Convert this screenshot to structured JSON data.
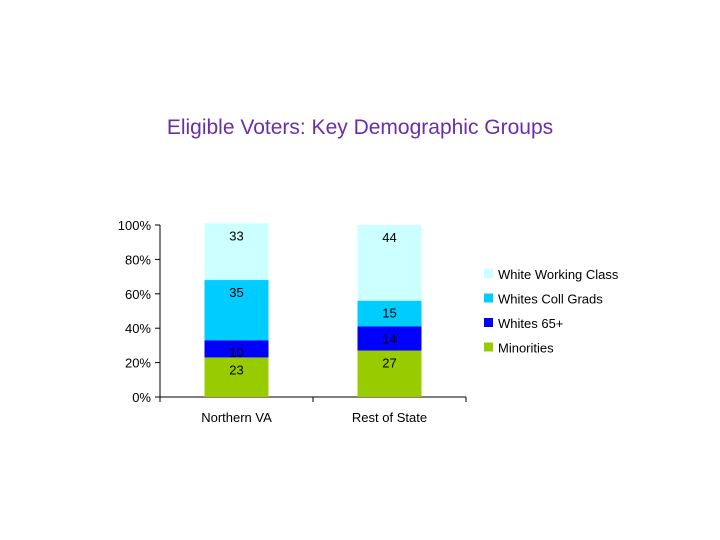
{
  "chart_data": {
    "type": "bar",
    "stacked": true,
    "title": "Eligible Voters: Key Demographic Groups",
    "categories": [
      "Northern VA",
      "Rest of State"
    ],
    "series": [
      {
        "name": "Minorities",
        "values": [
          23,
          27
        ],
        "color": "#99cc00"
      },
      {
        "name": "Whites 65+",
        "values": [
          10,
          14
        ],
        "color": "#0000ff"
      },
      {
        "name": "Whites Coll Grads",
        "values": [
          35,
          15
        ],
        "color": "#00ccff"
      },
      {
        "name": "White Working Class",
        "values": [
          33,
          44
        ],
        "color": "#ccffff"
      }
    ],
    "ylim": [
      0,
      100
    ],
    "yticks": [
      "0%",
      "20%",
      "40%",
      "60%",
      "80%",
      "100%"
    ],
    "legend_position": "right",
    "grid": false
  }
}
